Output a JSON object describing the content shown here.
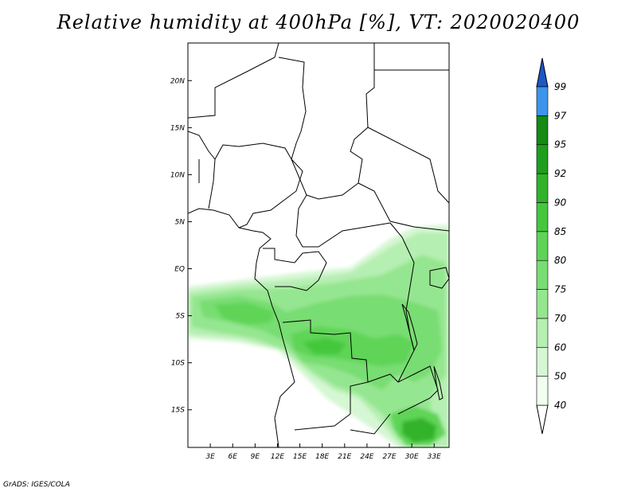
{
  "title": "Relative humidity at 400hPa [%], VT: 2020020400",
  "credit": "GrADS: IGES/COLA",
  "map": {
    "projection": "lat-lon",
    "lon_range_deg": [
      0,
      35
    ],
    "lat_range_deg": [
      -19,
      24
    ],
    "x_ticks": [
      {
        "value": 3,
        "label": "3E"
      },
      {
        "value": 6,
        "label": "6E"
      },
      {
        "value": 9,
        "label": "9E"
      },
      {
        "value": 12,
        "label": "12E"
      },
      {
        "value": 15,
        "label": "15E"
      },
      {
        "value": 18,
        "label": "18E"
      },
      {
        "value": 21,
        "label": "21E"
      },
      {
        "value": 24,
        "label": "24E"
      },
      {
        "value": 27,
        "label": "27E"
      },
      {
        "value": 30,
        "label": "30E"
      },
      {
        "value": 33,
        "label": "33E"
      }
    ],
    "y_ticks": [
      {
        "value": 20,
        "label": "20N"
      },
      {
        "value": 15,
        "label": "15N"
      },
      {
        "value": 10,
        "label": "10N"
      },
      {
        "value": 5,
        "label": "5N"
      },
      {
        "value": 0,
        "label": "EQ"
      },
      {
        "value": -5,
        "label": "5S"
      },
      {
        "value": -10,
        "label": "10S"
      },
      {
        "value": -15,
        "label": "15S"
      }
    ]
  },
  "colorbar": {
    "levels": [
      {
        "label": "40",
        "color": "#f0fff0"
      },
      {
        "label": "50",
        "color": "#d5f7d3"
      },
      {
        "label": "60",
        "color": "#b6efb2"
      },
      {
        "label": "70",
        "color": "#95e690"
      },
      {
        "label": "75",
        "color": "#78dd72"
      },
      {
        "label": "80",
        "color": "#5ed457"
      },
      {
        "label": "85",
        "color": "#45c73e"
      },
      {
        "label": "90",
        "color": "#30b32a"
      },
      {
        "label": "92",
        "color": "#1f9d1c"
      },
      {
        "label": "95",
        "color": "#148a14"
      },
      {
        "label": "97",
        "color": "#3c94eb"
      },
      {
        "label": "99",
        "color": "#1f6fdc"
      }
    ],
    "top_cap_color": "#1c58c4"
  }
}
